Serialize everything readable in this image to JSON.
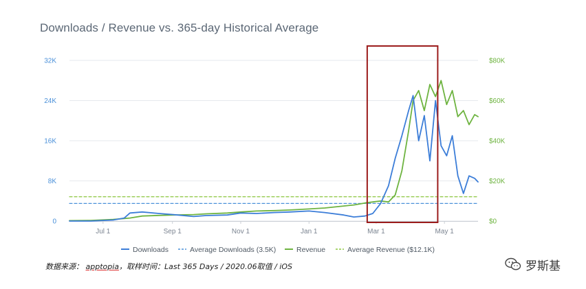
{
  "title": "Downloads / Revenue vs. 365-day Historical Average",
  "colors": {
    "downloads": "#3b7dd8",
    "revenue": "#6db33f",
    "avg_downloads": "#4a90d9",
    "avg_revenue": "#8cc63f",
    "highlight_box": "#9b1b1b",
    "grid": "#e6e9ed"
  },
  "chart_data": {
    "type": "line",
    "xlabels": [
      "Jul 1",
      "Sep 1",
      "Nov 1",
      "Jan 1",
      "Mar 1",
      "May 1"
    ],
    "y_left_ticks": [
      "0",
      "8K",
      "16K",
      "24K",
      "32K"
    ],
    "y_right_ticks": [
      "$0",
      "$20K",
      "$40K",
      "$60K",
      "$80K"
    ],
    "y_left_range": [
      0,
      32000
    ],
    "y_right_range": [
      0,
      80000
    ],
    "x_range": [
      "2019-06-01",
      "2020-05-31"
    ],
    "grid": "horizontal",
    "legend_position": "bottom",
    "series": [
      {
        "name": "Downloads",
        "axis": "left",
        "style": "solid",
        "x": [
          "2019-06-01",
          "2019-06-20",
          "2019-07-10",
          "2019-07-20",
          "2019-07-25",
          "2019-08-05",
          "2019-08-20",
          "2019-09-01",
          "2019-09-20",
          "2019-10-01",
          "2019-10-20",
          "2019-11-01",
          "2019-11-15",
          "2019-12-01",
          "2019-12-15",
          "2020-01-01",
          "2020-01-15",
          "2020-02-01",
          "2020-02-10",
          "2020-02-20",
          "2020-02-27",
          "2020-03-05",
          "2020-03-12",
          "2020-03-18",
          "2020-03-24",
          "2020-03-30",
          "2020-04-03",
          "2020-04-08",
          "2020-04-13",
          "2020-04-18",
          "2020-04-23",
          "2020-04-28",
          "2020-05-03",
          "2020-05-08",
          "2020-05-13",
          "2020-05-18",
          "2020-05-23",
          "2020-05-28",
          "2020-05-31"
        ],
        "values": [
          0,
          0,
          200,
          600,
          1600,
          1800,
          1500,
          1300,
          900,
          1100,
          1200,
          1600,
          1500,
          1700,
          1800,
          2000,
          1700,
          1200,
          800,
          1000,
          1500,
          3500,
          7000,
          12500,
          17000,
          22000,
          25000,
          16000,
          21000,
          12000,
          24000,
          15000,
          13000,
          17000,
          9000,
          5500,
          9000,
          8500,
          7800
        ]
      },
      {
        "name": "Average Downloads (3.5K)",
        "axis": "left",
        "style": "dashed",
        "x": [
          "2019-06-01",
          "2020-05-31"
        ],
        "values": [
          3500,
          3500
        ]
      },
      {
        "name": "Revenue",
        "axis": "right",
        "style": "solid",
        "x": [
          "2019-06-01",
          "2019-06-20",
          "2019-07-10",
          "2019-07-25",
          "2019-08-05",
          "2019-08-20",
          "2019-09-01",
          "2019-09-20",
          "2019-10-01",
          "2019-10-20",
          "2019-11-01",
          "2019-11-15",
          "2019-12-01",
          "2019-12-15",
          "2020-01-01",
          "2020-01-15",
          "2020-02-01",
          "2020-02-10",
          "2020-02-20",
          "2020-02-27",
          "2020-03-05",
          "2020-03-12",
          "2020-03-18",
          "2020-03-24",
          "2020-03-30",
          "2020-04-03",
          "2020-04-08",
          "2020-04-13",
          "2020-04-18",
          "2020-04-23",
          "2020-04-28",
          "2020-05-03",
          "2020-05-08",
          "2020-05-13",
          "2020-05-18",
          "2020-05-23",
          "2020-05-28",
          "2020-05-31"
        ],
        "values": [
          200,
          300,
          800,
          1500,
          2500,
          2800,
          3000,
          3200,
          3600,
          4000,
          4500,
          5000,
          5200,
          5500,
          6000,
          6500,
          7500,
          8000,
          9000,
          9500,
          10000,
          9500,
          13000,
          25000,
          45000,
          60000,
          65000,
          55000,
          68000,
          62000,
          70000,
          58000,
          65000,
          52000,
          55000,
          48000,
          53000,
          52000
        ]
      },
      {
        "name": "Average Revenue ($12.1K)",
        "axis": "right",
        "style": "dashed",
        "x": [
          "2019-06-01",
          "2020-05-31"
        ],
        "values": [
          12100,
          12100
        ]
      }
    ],
    "annotations": [
      {
        "type": "highlight_box",
        "x_range": [
          "2020-02-22",
          "2020-04-25"
        ]
      }
    ]
  },
  "footer": {
    "source_prefix": "数据来源：",
    "source_name": "apptopia",
    "source_rest": "，取样时间：Last 365 Days / 2020.06取值 / iOS"
  },
  "watermark": {
    "icon": "wechat-icon",
    "text": "罗斯基"
  }
}
